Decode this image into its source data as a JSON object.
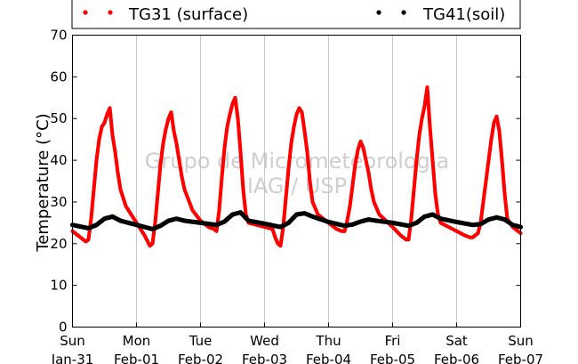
{
  "chart_data": {
    "type": "scatter",
    "ylabel": "Temperature (°C)",
    "ylim": [
      0,
      70
    ],
    "yticks": [
      0,
      10,
      20,
      30,
      40,
      50,
      60,
      70
    ],
    "xlim": [
      "2016-01-31",
      "2016-02-07"
    ],
    "xticks": [
      {
        "date": "2016-01-31",
        "day": "Sun",
        "label": "Jan-31"
      },
      {
        "date": "2016-02-01",
        "day": "Mon",
        "label": "Feb-01"
      },
      {
        "date": "2016-02-02",
        "day": "Tue",
        "label": "Feb-02"
      },
      {
        "date": "2016-02-03",
        "day": "Wed",
        "label": "Feb-03"
      },
      {
        "date": "2016-02-04",
        "day": "Thu",
        "label": "Feb-04"
      },
      {
        "date": "2016-02-05",
        "day": "Fri",
        "label": "Feb-05"
      },
      {
        "date": "2016-02-06",
        "day": "Sat",
        "label": "Feb-06"
      },
      {
        "date": "2016-02-07",
        "day": "Sun",
        "label": "Feb-07"
      }
    ],
    "grid": "vertical",
    "legend_position": "top",
    "watermark": [
      "Grupo de Micrometeorologia",
      "IAG / USP"
    ],
    "series": [
      {
        "name": "TG31 (surface)",
        "color": "#ff0000",
        "points": [
          [
            "2016-01-31 00:00",
            23.0
          ],
          [
            "2016-01-31 03:00",
            21.5
          ],
          [
            "2016-01-31 05:00",
            20.5
          ],
          [
            "2016-01-31 06:00",
            21.0
          ],
          [
            "2016-01-31 07:00",
            26.0
          ],
          [
            "2016-01-31 08:00",
            33.0
          ],
          [
            "2016-01-31 09:00",
            40.0
          ],
          [
            "2016-01-31 10:00",
            45.0
          ],
          [
            "2016-01-31 11:00",
            48.0
          ],
          [
            "2016-01-31 12:00",
            49.0
          ],
          [
            "2016-01-31 13:00",
            51.0
          ],
          [
            "2016-01-31 14:00",
            52.5
          ],
          [
            "2016-01-31 15:00",
            46.0
          ],
          [
            "2016-01-31 16:00",
            42.0
          ],
          [
            "2016-01-31 17:00",
            37.0
          ],
          [
            "2016-01-31 18:00",
            33.0
          ],
          [
            "2016-01-31 20:00",
            29.0
          ],
          [
            "2016-02-01 00:00",
            25.0
          ],
          [
            "2016-02-01 03:00",
            22.0
          ],
          [
            "2016-02-01 05:00",
            19.5
          ],
          [
            "2016-02-01 06:00",
            20.0
          ],
          [
            "2016-02-01 07:00",
            25.0
          ],
          [
            "2016-02-01 08:00",
            32.0
          ],
          [
            "2016-02-01 09:00",
            39.0
          ],
          [
            "2016-02-01 10:00",
            44.0
          ],
          [
            "2016-02-01 11:00",
            47.5
          ],
          [
            "2016-02-01 12:00",
            50.0
          ],
          [
            "2016-02-01 13:00",
            51.5
          ],
          [
            "2016-02-01 14:00",
            47.0
          ],
          [
            "2016-02-01 15:00",
            44.0
          ],
          [
            "2016-02-01 16:00",
            40.0
          ],
          [
            "2016-02-01 17:00",
            36.0
          ],
          [
            "2016-02-01 18:00",
            33.0
          ],
          [
            "2016-02-01 21:00",
            28.0
          ],
          [
            "2016-02-02 00:00",
            25.5
          ],
          [
            "2016-02-02 03:00",
            24.0
          ],
          [
            "2016-02-02 05:00",
            23.5
          ],
          [
            "2016-02-02 06:00",
            23.0
          ],
          [
            "2016-02-02 07:00",
            28.0
          ],
          [
            "2016-02-02 08:00",
            36.0
          ],
          [
            "2016-02-02 09:00",
            43.0
          ],
          [
            "2016-02-02 10:00",
            48.0
          ],
          [
            "2016-02-02 11:00",
            51.0
          ],
          [
            "2016-02-02 12:00",
            53.5
          ],
          [
            "2016-02-02 13:00",
            55.0
          ],
          [
            "2016-02-02 14:00",
            50.0
          ],
          [
            "2016-02-02 15:00",
            42.0
          ],
          [
            "2016-02-02 16:00",
            33.0
          ],
          [
            "2016-02-02 17:00",
            27.0
          ],
          [
            "2016-02-02 18:00",
            25.0
          ],
          [
            "2016-02-03 00:00",
            24.0
          ],
          [
            "2016-02-03 03:00",
            23.5
          ],
          [
            "2016-02-03 04:00",
            21.5
          ],
          [
            "2016-02-03 05:00",
            20.0
          ],
          [
            "2016-02-03 06:00",
            19.5
          ],
          [
            "2016-02-03 07:00",
            24.0
          ],
          [
            "2016-02-03 08:00",
            31.0
          ],
          [
            "2016-02-03 09:00",
            38.0
          ],
          [
            "2016-02-03 10:00",
            44.0
          ],
          [
            "2016-02-03 11:00",
            48.0
          ],
          [
            "2016-02-03 12:00",
            51.0
          ],
          [
            "2016-02-03 13:00",
            52.5
          ],
          [
            "2016-02-03 14:00",
            51.5
          ],
          [
            "2016-02-03 15:00",
            47.0
          ],
          [
            "2016-02-03 16:00",
            42.0
          ],
          [
            "2016-02-03 17:00",
            35.0
          ],
          [
            "2016-02-03 18:00",
            30.0
          ],
          [
            "2016-02-03 20:00",
            27.0
          ],
          [
            "2016-02-04 00:00",
            25.0
          ],
          [
            "2016-02-04 03:00",
            23.5
          ],
          [
            "2016-02-04 05:00",
            23.0
          ],
          [
            "2016-02-04 06:00",
            23.0
          ],
          [
            "2016-02-04 07:00",
            25.5
          ],
          [
            "2016-02-04 08:00",
            29.0
          ],
          [
            "2016-02-04 09:00",
            34.0
          ],
          [
            "2016-02-04 10:00",
            39.0
          ],
          [
            "2016-02-04 11:00",
            42.5
          ],
          [
            "2016-02-04 12:00",
            44.5
          ],
          [
            "2016-02-04 13:00",
            43.0
          ],
          [
            "2016-02-04 14:00",
            40.0
          ],
          [
            "2016-02-04 15:00",
            37.0
          ],
          [
            "2016-02-04 16:00",
            33.0
          ],
          [
            "2016-02-04 17:00",
            30.0
          ],
          [
            "2016-02-04 19:00",
            27.0
          ],
          [
            "2016-02-05 00:00",
            24.0
          ],
          [
            "2016-02-05 03:00",
            22.0
          ],
          [
            "2016-02-05 05:00",
            21.0
          ],
          [
            "2016-02-05 06:00",
            21.0
          ],
          [
            "2016-02-05 07:00",
            26.0
          ],
          [
            "2016-02-05 08:00",
            33.0
          ],
          [
            "2016-02-05 09:00",
            40.0
          ],
          [
            "2016-02-05 10:00",
            46.0
          ],
          [
            "2016-02-05 11:00",
            50.0
          ],
          [
            "2016-02-05 12:00",
            53.0
          ],
          [
            "2016-02-05 13:00",
            57.5
          ],
          [
            "2016-02-05 14:00",
            48.0
          ],
          [
            "2016-02-05 15:00",
            40.0
          ],
          [
            "2016-02-05 16:00",
            32.0
          ],
          [
            "2016-02-05 17:00",
            27.0
          ],
          [
            "2016-02-05 18:00",
            25.0
          ],
          [
            "2016-02-06 00:00",
            23.0
          ],
          [
            "2016-02-06 03:00",
            22.0
          ],
          [
            "2016-02-06 05:00",
            21.5
          ],
          [
            "2016-02-06 06:00",
            21.5
          ],
          [
            "2016-02-06 08:00",
            22.5
          ],
          [
            "2016-02-06 09:00",
            25.0
          ],
          [
            "2016-02-06 10:00",
            30.0
          ],
          [
            "2016-02-06 11:00",
            35.0
          ],
          [
            "2016-02-06 12:00",
            40.0
          ],
          [
            "2016-02-06 13:00",
            45.0
          ],
          [
            "2016-02-06 14:00",
            49.0
          ],
          [
            "2016-02-06 15:00",
            50.5
          ],
          [
            "2016-02-06 16:00",
            47.0
          ],
          [
            "2016-02-06 17:00",
            40.0
          ],
          [
            "2016-02-06 18:00",
            32.0
          ],
          [
            "2016-02-06 19:00",
            26.0
          ],
          [
            "2016-02-06 21:00",
            24.0
          ],
          [
            "2016-02-07 00:00",
            22.5
          ]
        ]
      },
      {
        "name": "TG41(soil)",
        "color": "#000000",
        "points": [
          [
            "2016-01-31 00:00",
            24.5
          ],
          [
            "2016-01-31 06:00",
            23.7
          ],
          [
            "2016-01-31 09:00",
            24.5
          ],
          [
            "2016-01-31 12:00",
            26.0
          ],
          [
            "2016-01-31 15:00",
            26.5
          ],
          [
            "2016-01-31 18:00",
            25.5
          ],
          [
            "2016-02-01 00:00",
            24.5
          ],
          [
            "2016-02-01 06:00",
            23.5
          ],
          [
            "2016-02-01 09:00",
            24.3
          ],
          [
            "2016-02-01 12:00",
            25.5
          ],
          [
            "2016-02-01 15:00",
            26.0
          ],
          [
            "2016-02-01 18:00",
            25.5
          ],
          [
            "2016-02-02 00:00",
            25.0
          ],
          [
            "2016-02-02 06:00",
            24.5
          ],
          [
            "2016-02-02 09:00",
            25.3
          ],
          [
            "2016-02-02 12:00",
            27.0
          ],
          [
            "2016-02-02 15:00",
            27.5
          ],
          [
            "2016-02-02 18:00",
            25.5
          ],
          [
            "2016-02-03 00:00",
            24.8
          ],
          [
            "2016-02-03 06:00",
            24.0
          ],
          [
            "2016-02-03 09:00",
            25.0
          ],
          [
            "2016-02-03 12:00",
            27.0
          ],
          [
            "2016-02-03 15:00",
            27.3
          ],
          [
            "2016-02-03 18:00",
            26.5
          ],
          [
            "2016-02-04 00:00",
            25.2
          ],
          [
            "2016-02-04 06:00",
            24.3
          ],
          [
            "2016-02-04 09:00",
            24.6
          ],
          [
            "2016-02-04 12:00",
            25.3
          ],
          [
            "2016-02-04 15:00",
            25.8
          ],
          [
            "2016-02-04 18:00",
            25.5
          ],
          [
            "2016-02-05 00:00",
            25.0
          ],
          [
            "2016-02-05 06:00",
            24.3
          ],
          [
            "2016-02-05 09:00",
            25.0
          ],
          [
            "2016-02-05 12:00",
            26.5
          ],
          [
            "2016-02-05 15:00",
            27.0
          ],
          [
            "2016-02-05 18:00",
            26.0
          ],
          [
            "2016-02-06 00:00",
            25.2
          ],
          [
            "2016-02-06 06:00",
            24.5
          ],
          [
            "2016-02-06 09:00",
            24.7
          ],
          [
            "2016-02-06 12:00",
            25.8
          ],
          [
            "2016-02-06 15:00",
            26.3
          ],
          [
            "2016-02-06 18:00",
            25.8
          ],
          [
            "2016-02-06 21:00",
            24.5
          ],
          [
            "2016-02-07 00:00",
            24.0
          ]
        ]
      }
    ]
  }
}
